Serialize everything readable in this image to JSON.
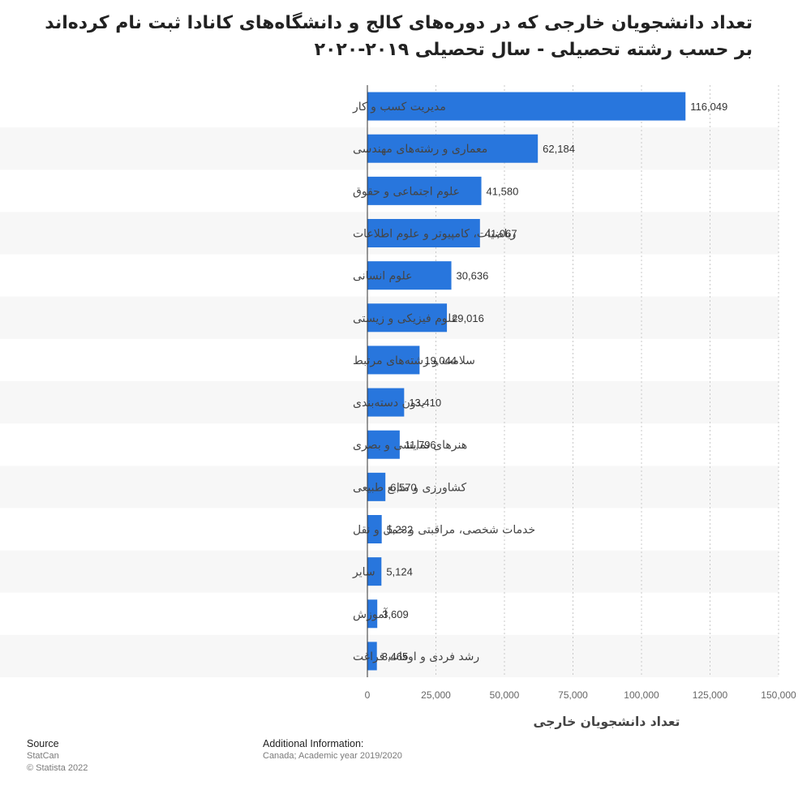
{
  "title": "تعداد دانشجویان خارجی که در دوره‌های کالج و دانشگاه‌های کانادا ثبت نام کرده‌اند بر حسب رشته تحصیلی - سال تحصیلی ۲۰۱۹-۲۰۲۰",
  "chart_data": {
    "type": "bar",
    "orientation": "horizontal",
    "categories": [
      "مدیریت کسب و کار",
      "معماری و رشته‌های مهندسی",
      "علوم اجتماعی و حقوق",
      "ریاضیات، کامپیوتر و علوم اطلاعات",
      "علوم انسانی",
      "علوم فیزیکی و زیستی",
      "سلامت و رشته‌های مرتبط",
      "بدون دسته‌بندی",
      "هنرهای نمایشی و بصری",
      "کشاورزی و منابع طبیعی",
      "خدمات شخصی، مراقبتی و حمل و نقل",
      "سایر",
      "آموزش",
      "رشد فردی و اوقات فراغت"
    ],
    "values": [
      116049,
      62184,
      41580,
      41067,
      30636,
      29016,
      19044,
      13410,
      11796,
      6570,
      5232,
      5124,
      3609,
      3465
    ],
    "value_labels": [
      "116,049",
      "62,184",
      "41,580",
      "41,067",
      "30,636",
      "29,016",
      "19,044",
      "13,410",
      "11,796",
      "6,570",
      "5,232",
      "5,124",
      "3,609",
      "3,465"
    ],
    "x_ticks": [
      0,
      25000,
      50000,
      75000,
      100000,
      125000,
      150000
    ],
    "x_tick_labels": [
      "0",
      "25,000",
      "50,000",
      "75,000",
      "100,000",
      "125,000",
      "150,000"
    ],
    "xlim": [
      0,
      150000
    ],
    "xlabel": "تعداد دانشجویان خارجی",
    "bar_color": "#2876dd",
    "grid": true
  },
  "footer": {
    "source_heading": "Source",
    "source_name": "StatCan",
    "copyright": "© Statista 2022",
    "info_heading": "Additional Information:",
    "info_text": "Canada; Academic year 2019/2020"
  }
}
